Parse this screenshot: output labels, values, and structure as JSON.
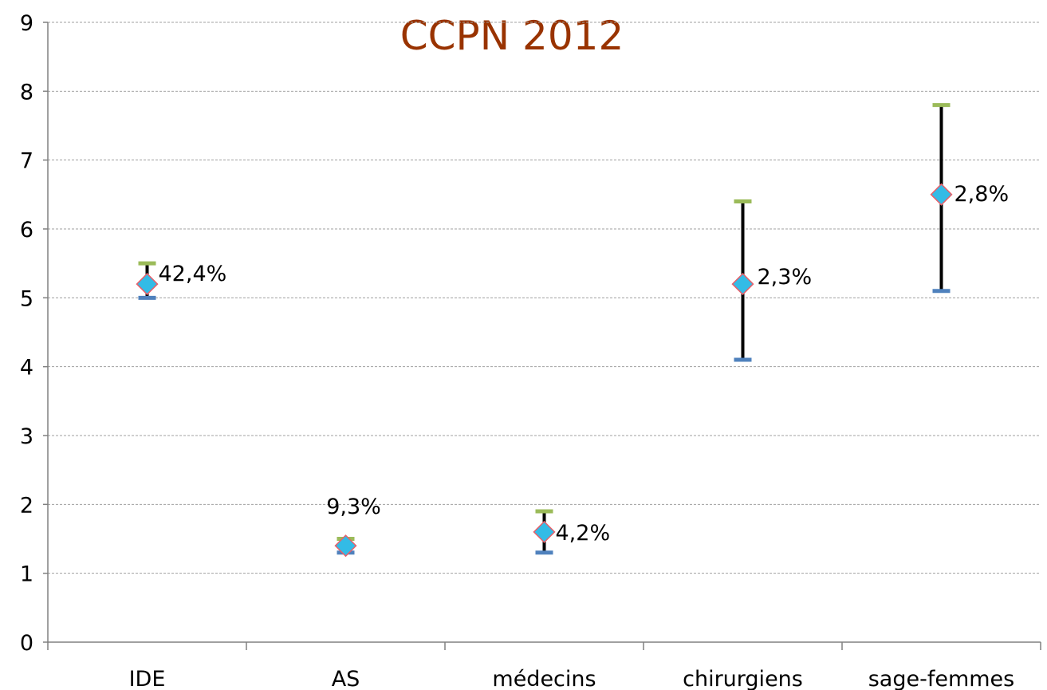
{
  "chart_data": {
    "type": "scatter",
    "title": "CCPN 2012",
    "xlabel": "",
    "ylabel": "",
    "ylim": [
      0,
      9
    ],
    "yticks": [
      0,
      1,
      2,
      3,
      4,
      5,
      6,
      7,
      8,
      9
    ],
    "grid": true,
    "legend": "none",
    "categories": [
      "IDE",
      "AS",
      "médecins",
      "chirurgiens",
      "sage-femmes"
    ],
    "series": [
      {
        "values": [
          5.2,
          1.4,
          1.6,
          5.2,
          6.5
        ],
        "high": [
          5.5,
          1.5,
          1.9,
          6.4,
          7.8
        ],
        "low": [
          5.0,
          1.3,
          1.3,
          4.1,
          5.1
        ],
        "labels": [
          "42,4%",
          "9,3%",
          "4,2%",
          "2,3%",
          "2,8%"
        ]
      }
    ],
    "colors": {
      "title": "#993300",
      "marker_fill": "#33bbe6",
      "marker_stroke": "#e8606a",
      "high_cap": "#9bbb59",
      "low_cap": "#4f81bd",
      "error_bar": "#000000",
      "grid": "#a0a0a0",
      "axis": "#808080"
    }
  }
}
